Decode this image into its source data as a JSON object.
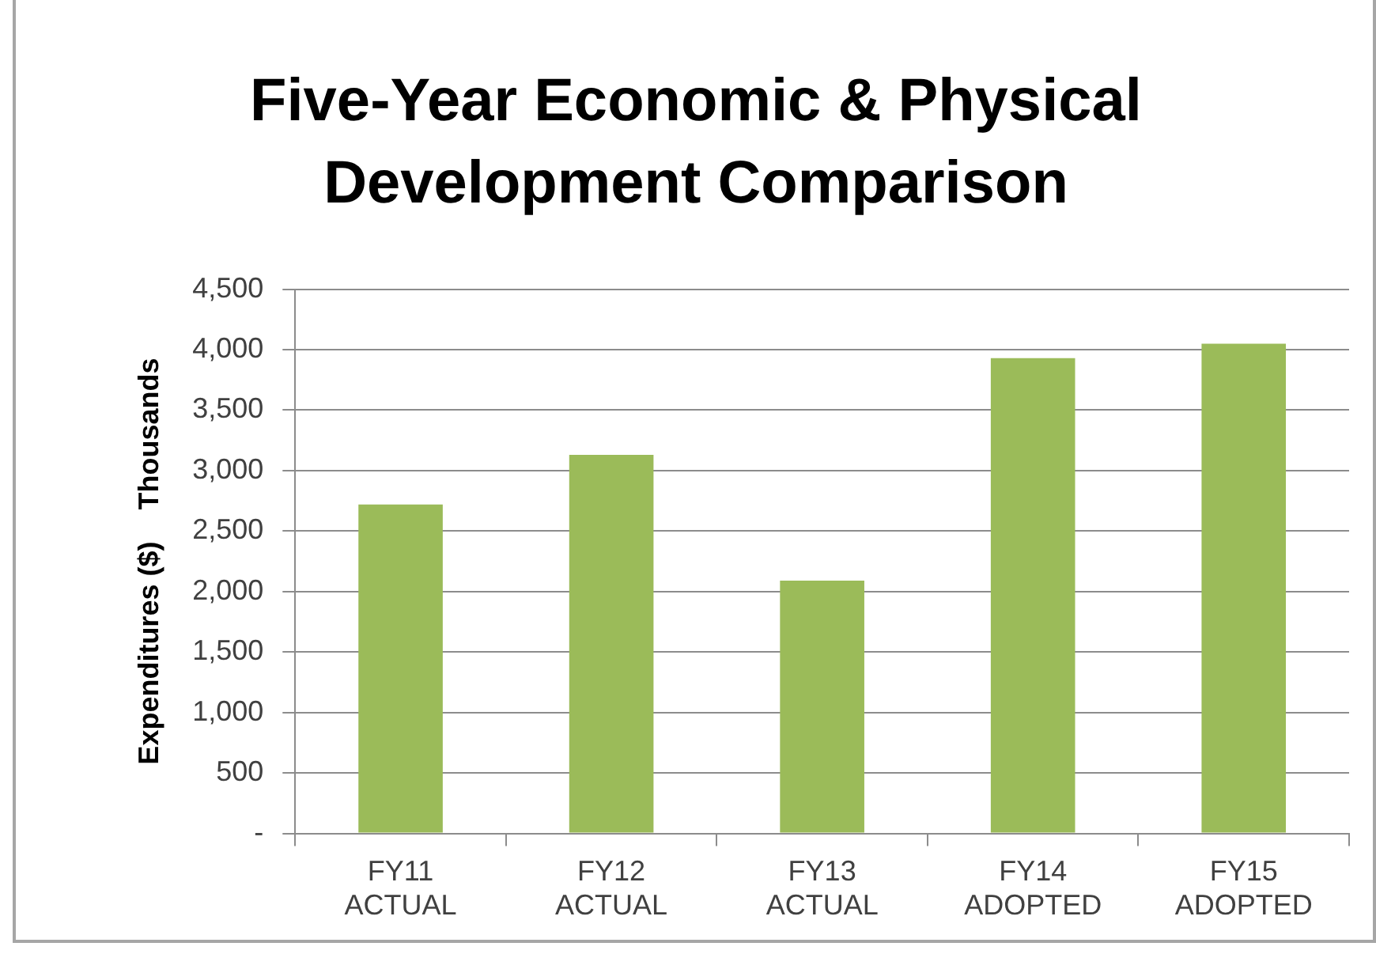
{
  "chart_data": {
    "type": "bar",
    "title": "Five-Year Economic & Physical Development Comparison",
    "ylabel": "Expenditures ($)    Thousands",
    "categories": [
      "FY11 ACTUAL",
      "FY12 ACTUAL",
      "FY13 ACTUAL",
      "FY14 ADOPTED",
      "FY15 ADOPTED"
    ],
    "values": [
      2720,
      3130,
      2090,
      3930,
      4050
    ],
    "color": "#9bbb59",
    "ylim": [
      0,
      4500
    ],
    "yticks": [
      {
        "value": 0,
        "label": "-"
      },
      {
        "value": 500,
        "label": "500"
      },
      {
        "value": 1000,
        "label": "1,000"
      },
      {
        "value": 1500,
        "label": "1,500"
      },
      {
        "value": 2000,
        "label": "2,000"
      },
      {
        "value": 2500,
        "label": "2,500"
      },
      {
        "value": 3000,
        "label": "3,000"
      },
      {
        "value": 3500,
        "label": "3,500"
      },
      {
        "value": 4000,
        "label": "4,000"
      },
      {
        "value": 4500,
        "label": "4,500"
      }
    ],
    "grid": "y",
    "legend": false
  }
}
